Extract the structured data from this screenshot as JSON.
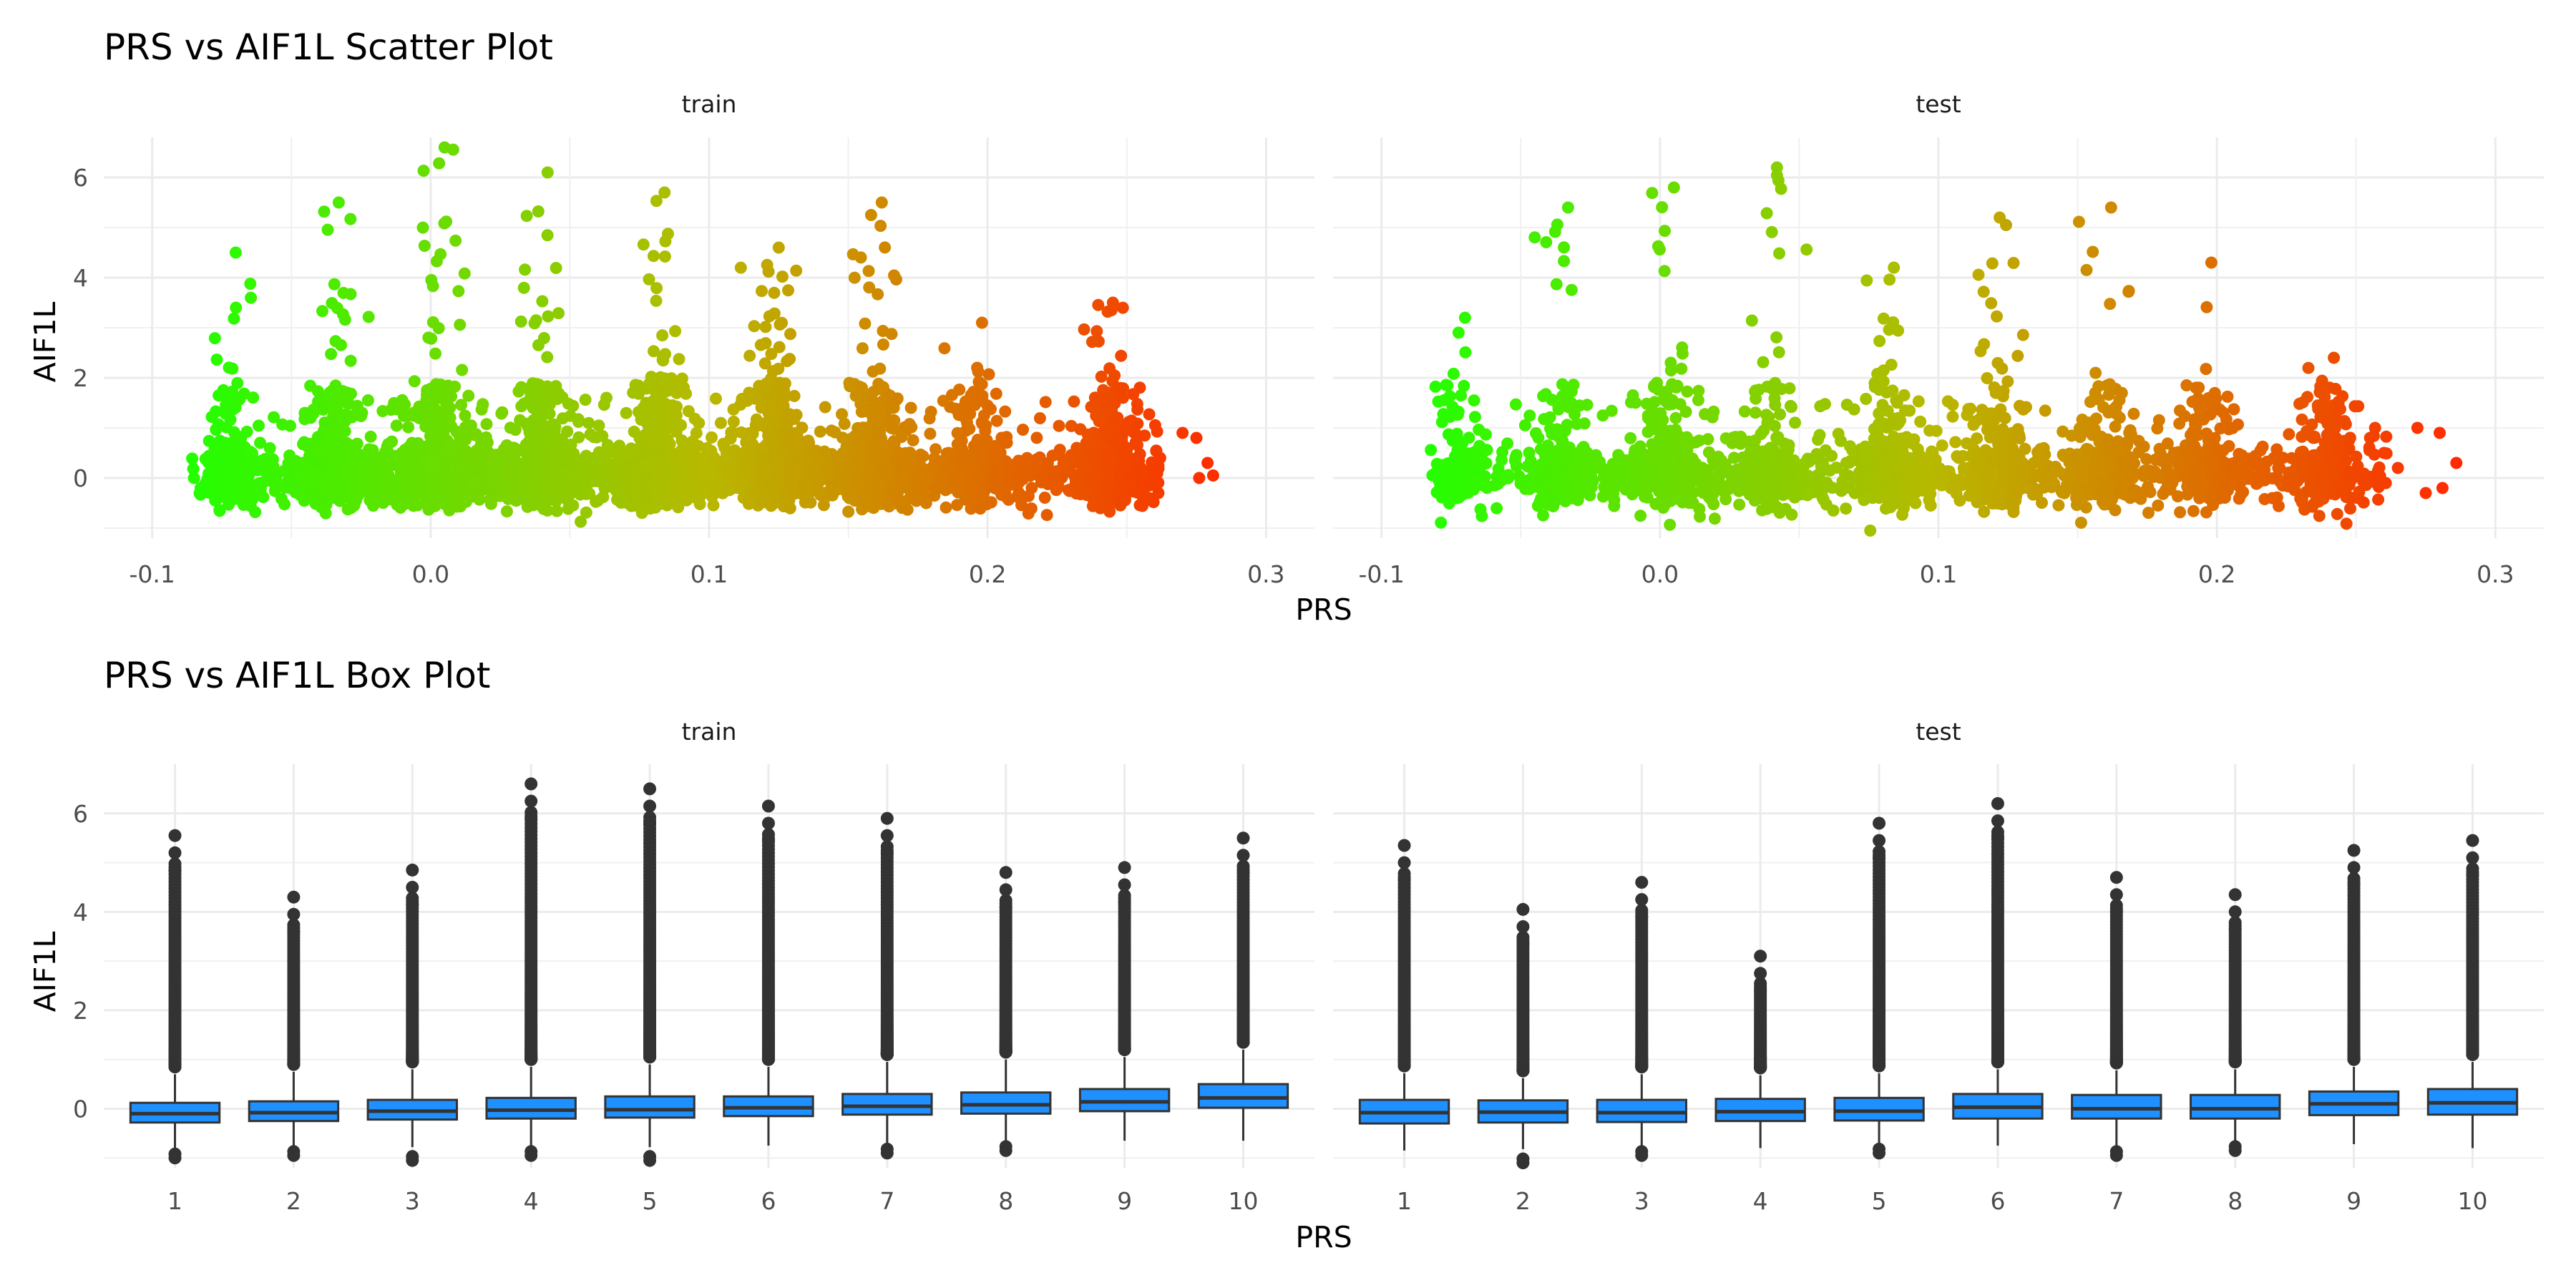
{
  "chart_data": [
    {
      "type": "scatter",
      "title": "PRS vs AIF1L Scatter Plot",
      "xlabel": "PRS",
      "ylabel": "AIF1L",
      "facets": [
        "train",
        "test"
      ],
      "xlim": [
        -0.1,
        0.3
      ],
      "ylim": [
        -1.2,
        6.8
      ],
      "x_ticks": [
        -0.1,
        0.0,
        0.1,
        0.2,
        0.3
      ],
      "x_tick_labels": [
        "-0.1",
        "0.0",
        "0.1",
        "0.2",
        "0.3"
      ],
      "y_ticks": [
        0,
        2,
        4,
        6
      ],
      "grid": true,
      "color_scale": {
        "low": "#22ff00",
        "mid": "#b8b800",
        "high": "#ff2a00"
      },
      "clusters": {
        "train": [
          {
            "x": -0.072,
            "n": 260,
            "max": 4.5
          },
          {
            "x": -0.035,
            "n": 520,
            "max": 5.5
          },
          {
            "x": 0.003,
            "n": 560,
            "max": 6.6
          },
          {
            "x": 0.04,
            "n": 480,
            "max": 6.1
          },
          {
            "x": 0.082,
            "n": 520,
            "max": 5.7
          },
          {
            "x": 0.123,
            "n": 560,
            "max": 4.6
          },
          {
            "x": 0.16,
            "n": 420,
            "max": 5.5
          },
          {
            "x": 0.196,
            "n": 300,
            "max": 3.1
          },
          {
            "x": 0.243,
            "n": 460,
            "max": 3.5
          }
        ],
        "test": [
          {
            "x": -0.072,
            "n": 140,
            "max": 3.2
          },
          {
            "x": -0.035,
            "n": 260,
            "max": 5.4
          },
          {
            "x": 0.003,
            "n": 300,
            "max": 5.8
          },
          {
            "x": 0.04,
            "n": 260,
            "max": 6.2
          },
          {
            "x": 0.082,
            "n": 280,
            "max": 4.2
          },
          {
            "x": 0.12,
            "n": 300,
            "max": 5.2
          },
          {
            "x": 0.16,
            "n": 240,
            "max": 5.4
          },
          {
            "x": 0.196,
            "n": 200,
            "max": 4.3
          },
          {
            "x": 0.24,
            "n": 200,
            "max": 2.4
          }
        ]
      },
      "extra_points": {
        "train": [
          [
            -0.085,
            0.0
          ],
          [
            0.27,
            0.9
          ],
          [
            0.275,
            0.8
          ],
          [
            0.276,
            0.0
          ],
          [
            0.279,
            0.3
          ],
          [
            0.281,
            0.05
          ],
          [
            0.232,
            0.6
          ],
          [
            0.255,
            0.2
          ],
          [
            0.262,
            0.4
          ]
        ],
        "test": [
          [
            0.255,
            0.8
          ],
          [
            0.26,
            0.5
          ],
          [
            0.265,
            0.2
          ],
          [
            0.272,
            1.0
          ],
          [
            0.275,
            -0.3
          ],
          [
            0.28,
            0.9
          ],
          [
            0.281,
            -0.2
          ],
          [
            0.286,
            0.3
          ],
          [
            0.222,
            0.2
          ]
        ]
      }
    },
    {
      "type": "box",
      "title": "PRS vs AIF1L Box Plot",
      "xlabel": "PRS",
      "ylabel": "AIF1L",
      "facets": [
        "train",
        "test"
      ],
      "categories": [
        "1",
        "2",
        "3",
        "4",
        "5",
        "6",
        "7",
        "8",
        "9",
        "10"
      ],
      "ylim": [
        -1.2,
        7.0
      ],
      "y_ticks": [
        0,
        2,
        4,
        6
      ],
      "grid": true,
      "box_fill": "#1e90ff",
      "train": {
        "q1": [
          -0.28,
          -0.25,
          -0.22,
          -0.2,
          -0.18,
          -0.15,
          -0.12,
          -0.1,
          -0.05,
          0.02
        ],
        "median": [
          -0.1,
          -0.08,
          -0.05,
          -0.03,
          -0.02,
          0.02,
          0.05,
          0.08,
          0.14,
          0.22
        ],
        "q3": [
          0.12,
          0.15,
          0.18,
          0.22,
          0.25,
          0.25,
          0.3,
          0.33,
          0.4,
          0.5
        ],
        "lower": [
          -0.8,
          -0.75,
          -0.78,
          -0.78,
          -0.78,
          -0.75,
          -0.75,
          -0.7,
          -0.65,
          -0.65
        ],
        "upper": [
          0.7,
          0.75,
          0.8,
          0.85,
          0.9,
          0.85,
          0.95,
          1.0,
          1.05,
          1.2
        ],
        "outlier_max": [
          5.55,
          4.3,
          4.85,
          6.6,
          6.5,
          6.15,
          5.9,
          4.8,
          4.9,
          5.5
        ],
        "outlier_min": [
          -1.0,
          -0.95,
          -1.05,
          -0.95,
          -1.05,
          null,
          -0.9,
          -0.85,
          null,
          null
        ]
      },
      "test": {
        "q1": [
          -0.3,
          -0.28,
          -0.27,
          -0.25,
          -0.24,
          -0.2,
          -0.2,
          -0.2,
          -0.13,
          -0.12
        ],
        "median": [
          -0.08,
          -0.07,
          -0.08,
          -0.06,
          -0.05,
          0.03,
          0.0,
          0.0,
          0.1,
          0.12
        ],
        "q3": [
          0.18,
          0.17,
          0.18,
          0.2,
          0.22,
          0.3,
          0.28,
          0.28,
          0.35,
          0.4
        ],
        "lower": [
          -0.85,
          -0.82,
          -0.8,
          -0.8,
          -0.8,
          -0.75,
          -0.8,
          -0.78,
          -0.72,
          -0.8
        ],
        "upper": [
          0.72,
          0.62,
          0.7,
          0.68,
          0.72,
          0.8,
          0.78,
          0.8,
          0.85,
          0.95
        ],
        "outlier_max": [
          5.35,
          4.05,
          4.6,
          3.1,
          5.8,
          6.2,
          4.7,
          4.35,
          5.25,
          5.45
        ],
        "outlier_min": [
          null,
          -1.1,
          -0.95,
          null,
          -0.9,
          null,
          -0.95,
          -0.85,
          null,
          null
        ]
      }
    }
  ]
}
